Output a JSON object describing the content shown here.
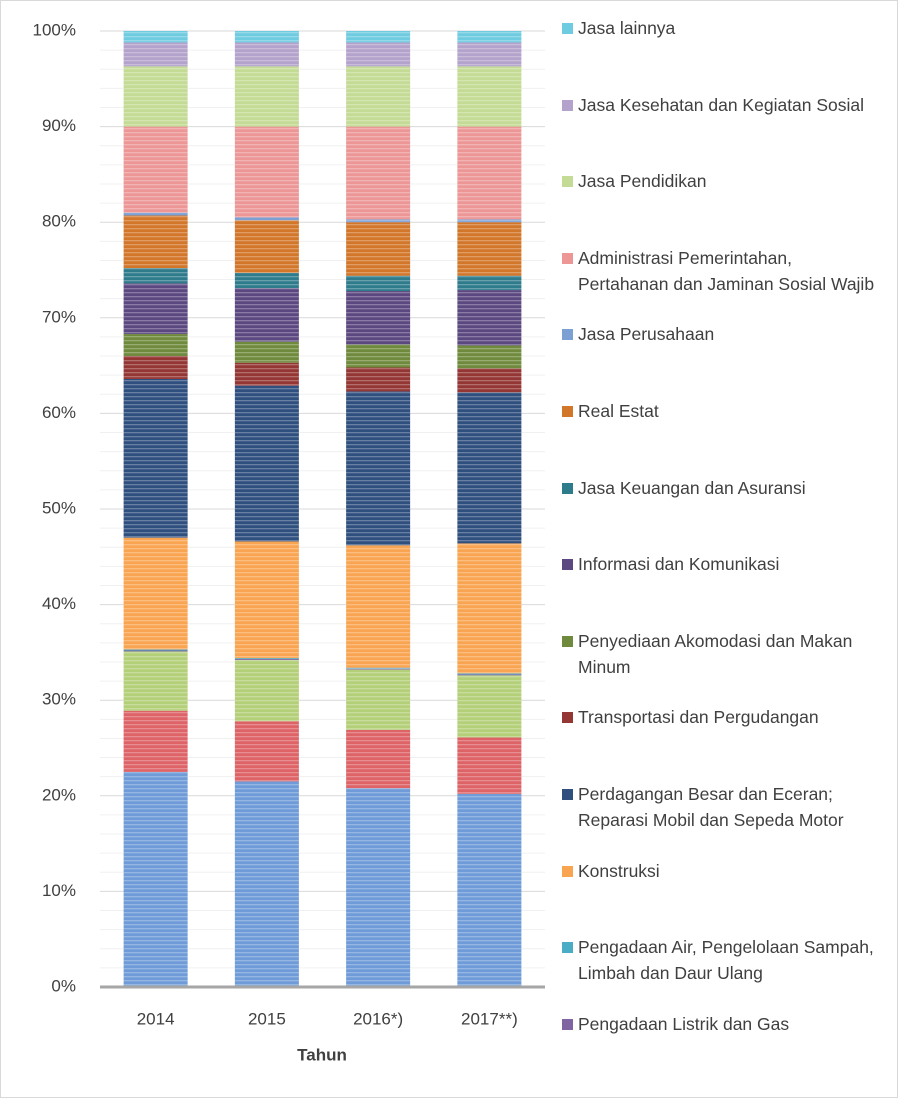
{
  "chart_data": {
    "type": "stacked_bar_percent",
    "x_label": "Tahun",
    "categories": [
      "2014",
      "2015",
      "2016*)",
      "2017**)"
    ],
    "ylim": [
      0,
      100
    ],
    "yticks": [
      {
        "value": 0,
        "label": "0%"
      },
      {
        "value": 10,
        "label": "10%"
      },
      {
        "value": 20,
        "label": "20%"
      },
      {
        "value": 30,
        "label": "30%"
      },
      {
        "value": 40,
        "label": "40%"
      },
      {
        "value": 50,
        "label": "50%"
      },
      {
        "value": 60,
        "label": "60%"
      },
      {
        "value": 70,
        "label": "70%"
      },
      {
        "value": 80,
        "label": "80%"
      },
      {
        "value": 90,
        "label": "90%"
      },
      {
        "value": 100,
        "label": "100%"
      }
    ],
    "grid": true,
    "legend": "right",
    "series": [
      {
        "color": "#6f9bd8",
        "values": [
          22.5,
          21.5,
          20.8,
          20.2
        ]
      },
      {
        "color": "#dd6366",
        "values": [
          6.4,
          6.3,
          6.1,
          5.9
        ]
      },
      {
        "color": "#b3cf78",
        "values": [
          6.2,
          6.4,
          6.3,
          6.5
        ]
      },
      {
        "name": "Pengadaan Listrik dan Gas",
        "color": "#8064a2",
        "values": [
          0.1,
          0.1,
          0.1,
          0.1
        ]
      },
      {
        "name": "Pengadaan Air, Pengelolaan Sampah, Limbah dan Daur Ulang",
        "color": "#4bacc6",
        "values": [
          0.1,
          0.1,
          0.1,
          0.1
        ]
      },
      {
        "name": "Konstruksi",
        "color": "#f9a450",
        "values": [
          11.7,
          12.2,
          12.8,
          13.6
        ]
      },
      {
        "name": "Perdagangan Besar dan Eceran; Reparasi Mobil dan Sepeda Motor",
        "color": "#2f4f7e",
        "values": [
          16.6,
          16.3,
          16.1,
          15.8
        ]
      },
      {
        "name": "Transportasi dan Pergudangan",
        "color": "#943634",
        "values": [
          2.4,
          2.4,
          2.5,
          2.5
        ]
      },
      {
        "name": "Penyediaan Akomodasi dan Makan Minum",
        "color": "#6f8a3c",
        "values": [
          2.3,
          2.2,
          2.4,
          2.4
        ]
      },
      {
        "name": "Informasi dan Komunikasi",
        "color": "#5c4880",
        "values": [
          5.3,
          5.6,
          5.6,
          5.8
        ]
      },
      {
        "name": "Jasa Keuangan dan Asuransi",
        "color": "#2e7b8c",
        "values": [
          1.6,
          1.6,
          1.6,
          1.5
        ]
      },
      {
        "name": "Real Estat",
        "color": "#d2762a",
        "values": [
          5.5,
          5.5,
          5.6,
          5.6
        ]
      },
      {
        "name": "Jasa Perusahaan",
        "color": "#7aa0d4",
        "values": [
          0.3,
          0.3,
          0.3,
          0.3
        ]
      },
      {
        "name": "Administrasi Pemerintahan, Pertahanan dan Jaminan Sosial Wajib",
        "color": "#ec9696",
        "values": [
          9.0,
          9.5,
          9.7,
          9.7
        ]
      },
      {
        "name": "Jasa Pendidikan",
        "color": "#c3db94",
        "values": [
          6.3,
          6.3,
          6.3,
          6.3
        ]
      },
      {
        "name": "Jasa Kesehatan dan Kegiatan Sosial",
        "color": "#b3a2cb",
        "values": [
          2.5,
          2.5,
          2.5,
          2.5
        ]
      },
      {
        "name": "Jasa lainnya",
        "color": "#6ecbe0",
        "values": [
          1.2,
          1.2,
          1.2,
          1.2
        ]
      }
    ]
  }
}
